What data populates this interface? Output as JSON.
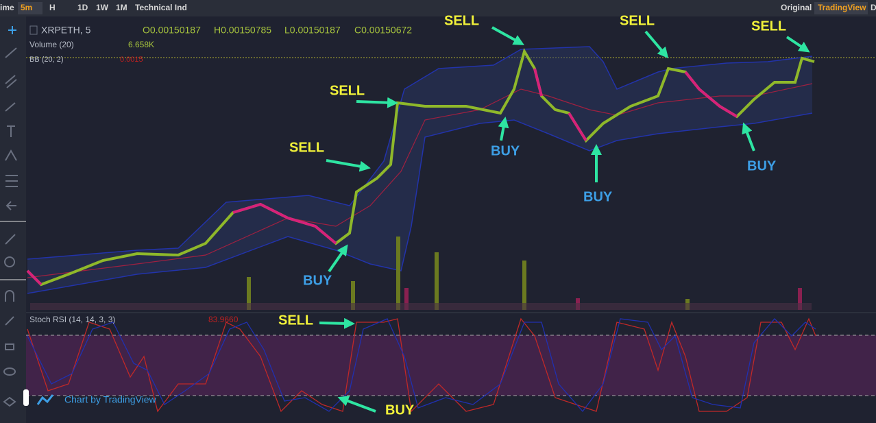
{
  "toolbar": {
    "items": [
      "ime",
      "5m",
      "H",
      "1D",
      "1W",
      "1M",
      "Technical Ind"
    ],
    "right": [
      "Original",
      "TradingView",
      "D"
    ]
  },
  "legend": {
    "symbol": "XRPETH, 5",
    "open": "O0.00150187",
    "high": "H0.00150785",
    "low": "L0.00150187",
    "close": "C0.00150672",
    "volume": "Volume (20)",
    "volume_value": "6.658K",
    "bb": "BB (20, 2)",
    "bb_value": "0.0015"
  },
  "stoch": {
    "label": "Stoch RSI (14, 14, 3, 3)",
    "value": "83.9660"
  },
  "watermark": "Chart by TradingView",
  "annotations": [
    "SELL",
    "SELL",
    "SELL",
    "SELL",
    "SELL",
    "BUY",
    "BUY",
    "BUY",
    "BUY",
    "SELL",
    "BUY"
  ]
}
